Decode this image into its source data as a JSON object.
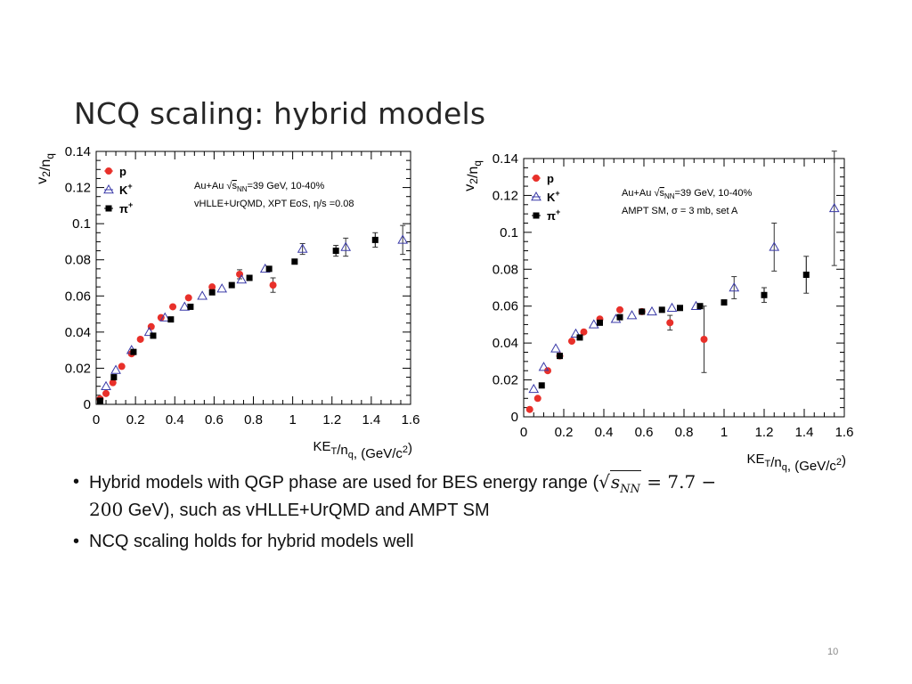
{
  "slide": {
    "title": "NCQ scaling: hybrid models",
    "page_number": "10"
  },
  "bullets": [
    {
      "before": "Hybrid models with QGP phase are used for BES energy range (",
      "sqrt_body": "s",
      "sqrt_sub": "NN",
      "eq": " = 7.7 −",
      "line2_num": "200",
      "after": " GeV), such as vHLLE+UrQMD and AMPT SM"
    },
    {
      "text": "NCQ scaling holds for hybrid models well"
    }
  ],
  "chart_data": [
    {
      "type": "scatter",
      "title": "",
      "xlabel": "KE_T/n_q,  (GeV/c^2)",
      "ylabel": "v_2/n_q",
      "xlim": [
        0,
        1.6
      ],
      "ylim": [
        0,
        0.14
      ],
      "xticks": [
        "0",
        "0.2",
        "0.4",
        "0.6",
        "0.8",
        "1",
        "1.2",
        "1.4",
        "1.6"
      ],
      "yticks": [
        "0",
        "0.02",
        "0.04",
        "0.06",
        "0.08",
        "0.1",
        "0.12",
        "0.14"
      ],
      "grid": false,
      "legend_position": "top-left",
      "annotation": {
        "system": "Au+Au",
        "sqrt_s": "s",
        "sqrt_sub": "NN",
        "energy": "=39 GeV, 10-40%",
        "model": "vHLLE+UrQMD, XPT EoS, η/s =0.08"
      },
      "series": [
        {
          "name": "p",
          "name_sup": "",
          "color": "#e8302a",
          "marker": "circle",
          "x": [
            0.02,
            0.05,
            0.085,
            0.13,
            0.18,
            0.225,
            0.28,
            0.33,
            0.39,
            0.47,
            0.59,
            0.73,
            0.9
          ],
          "y": [
            0.003,
            0.006,
            0.012,
            0.021,
            0.028,
            0.036,
            0.043,
            0.048,
            0.054,
            0.059,
            0.065,
            0.072,
            0.066
          ],
          "err": [
            0,
            0,
            0,
            0,
            0,
            0,
            0,
            0,
            0,
            0,
            0,
            0.0025,
            0.004
          ]
        },
        {
          "name": "K",
          "name_sup": "+",
          "color": "#3a3aa8",
          "marker": "triangle-open",
          "x": [
            0.05,
            0.1,
            0.18,
            0.27,
            0.35,
            0.45,
            0.54,
            0.64,
            0.74,
            0.86,
            1.05,
            1.27,
            1.56
          ],
          "y": [
            0.01,
            0.019,
            0.03,
            0.04,
            0.048,
            0.054,
            0.06,
            0.064,
            0.069,
            0.075,
            0.086,
            0.087,
            0.091
          ],
          "err": [
            0,
            0,
            0,
            0,
            0,
            0,
            0,
            0,
            0,
            0,
            0.003,
            0.005,
            0.008
          ]
        },
        {
          "name": "π",
          "name_sup": "+",
          "color": "#000000",
          "marker": "square",
          "x": [
            0.02,
            0.09,
            0.19,
            0.29,
            0.38,
            0.48,
            0.59,
            0.69,
            0.78,
            0.88,
            1.01,
            1.22,
            1.42
          ],
          "y": [
            0.002,
            0.015,
            0.029,
            0.038,
            0.047,
            0.054,
            0.062,
            0.066,
            0.07,
            0.075,
            0.079,
            0.085,
            0.091
          ],
          "err": [
            0,
            0,
            0,
            0,
            0,
            0,
            0,
            0,
            0,
            0,
            0,
            0.003,
            0.004
          ]
        }
      ]
    },
    {
      "type": "scatter",
      "title": "",
      "xlabel": "KE_T/n_q,  (GeV/c^2)",
      "ylabel": "v_2/n_q",
      "xlim": [
        0,
        1.6
      ],
      "ylim": [
        0,
        0.14
      ],
      "xticks": [
        "0",
        "0.2",
        "0.4",
        "0.6",
        "0.8",
        "1",
        "1.2",
        "1.4",
        "1.6"
      ],
      "yticks": [
        "0",
        "0.02",
        "0.04",
        "0.06",
        "0.08",
        "0.1",
        "0.12",
        "0.14"
      ],
      "grid": false,
      "legend_position": "top-left",
      "annotation": {
        "system": "Au+Au",
        "sqrt_s": "s",
        "sqrt_sub": "NN",
        "energy": "=39 GeV, 10-40%",
        "model": "AMPT SM, σ = 3 mb, set A"
      },
      "series": [
        {
          "name": "p",
          "name_sup": "",
          "color": "#e8302a",
          "marker": "circle",
          "x": [
            0.03,
            0.07,
            0.12,
            0.18,
            0.24,
            0.3,
            0.38,
            0.48,
            0.59,
            0.73,
            0.9
          ],
          "y": [
            0.004,
            0.01,
            0.025,
            0.033,
            0.041,
            0.046,
            0.053,
            0.058,
            0.057,
            0.051,
            0.042
          ],
          "err": [
            0,
            0,
            0,
            0,
            0,
            0,
            0,
            0,
            0,
            0.004,
            0.018
          ]
        },
        {
          "name": "K",
          "name_sup": "+",
          "color": "#3a3aa8",
          "marker": "triangle-open",
          "x": [
            0.05,
            0.1,
            0.16,
            0.26,
            0.35,
            0.46,
            0.54,
            0.64,
            0.74,
            0.86,
            1.05,
            1.25,
            1.55
          ],
          "y": [
            0.015,
            0.027,
            0.037,
            0.045,
            0.05,
            0.053,
            0.055,
            0.057,
            0.059,
            0.06,
            0.07,
            0.092,
            0.113
          ],
          "err": [
            0,
            0,
            0,
            0,
            0,
            0,
            0,
            0,
            0,
            0,
            0.006,
            0.013,
            0.031
          ]
        },
        {
          "name": "π",
          "name_sup": "+",
          "color": "#000000",
          "marker": "square",
          "x": [
            0.09,
            0.18,
            0.28,
            0.38,
            0.48,
            0.59,
            0.69,
            0.78,
            0.88,
            1.0,
            1.2,
            1.41
          ],
          "y": [
            0.017,
            0.033,
            0.043,
            0.051,
            0.054,
            0.057,
            0.058,
            0.059,
            0.06,
            0.062,
            0.066,
            0.077
          ],
          "err": [
            0,
            0,
            0,
            0,
            0,
            0,
            0,
            0,
            0,
            0.001,
            0.004,
            0.01
          ]
        }
      ]
    }
  ]
}
